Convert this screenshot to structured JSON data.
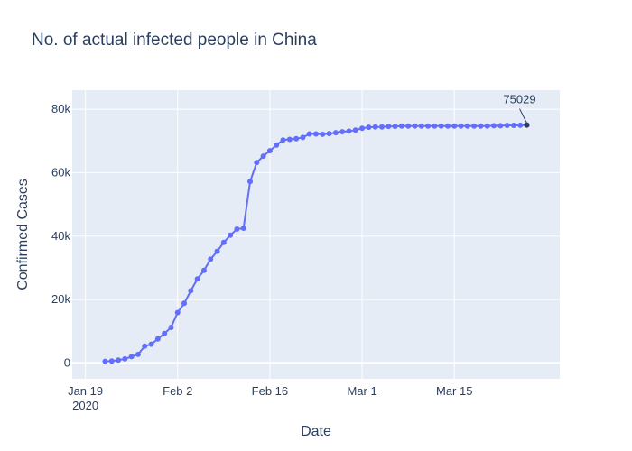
{
  "chart_data": {
    "type": "line",
    "title": "No. of actual infected people in China",
    "xlabel": "Date",
    "ylabel": "Confirmed Cases",
    "xlim": [
      "2020-01-17",
      "2020-03-31"
    ],
    "ylim": [
      -5000,
      86000
    ],
    "x_ticks": [
      {
        "date": "2020-01-19",
        "label": "Jan 19",
        "sublabel": "2020"
      },
      {
        "date": "2020-02-02",
        "label": "Feb 2"
      },
      {
        "date": "2020-02-16",
        "label": "Feb 16"
      },
      {
        "date": "2020-03-01",
        "label": "Mar 1"
      },
      {
        "date": "2020-03-15",
        "label": "Mar 15"
      }
    ],
    "y_ticks": [
      {
        "value": 0,
        "label": "0"
      },
      {
        "value": 20000,
        "label": "20k"
      },
      {
        "value": 40000,
        "label": "40k"
      },
      {
        "value": 60000,
        "label": "60k"
      },
      {
        "value": 80000,
        "label": "80k"
      }
    ],
    "grid": true,
    "series": [
      {
        "color": "#636efa",
        "x": [
          "2020-01-22",
          "2020-01-23",
          "2020-01-24",
          "2020-01-25",
          "2020-01-26",
          "2020-01-27",
          "2020-01-28",
          "2020-01-29",
          "2020-01-30",
          "2020-01-31",
          "2020-02-01",
          "2020-02-02",
          "2020-02-03",
          "2020-02-04",
          "2020-02-05",
          "2020-02-06",
          "2020-02-07",
          "2020-02-08",
          "2020-02-09",
          "2020-02-10",
          "2020-02-11",
          "2020-02-12",
          "2020-02-13",
          "2020-02-14",
          "2020-02-15",
          "2020-02-16",
          "2020-02-17",
          "2020-02-18",
          "2020-02-19",
          "2020-02-20",
          "2020-02-21",
          "2020-02-22",
          "2020-02-23",
          "2020-02-24",
          "2020-02-25",
          "2020-02-26",
          "2020-02-27",
          "2020-02-28",
          "2020-02-29",
          "2020-03-01",
          "2020-03-02",
          "2020-03-03",
          "2020-03-04",
          "2020-03-05",
          "2020-03-06",
          "2020-03-07",
          "2020-03-08",
          "2020-03-09",
          "2020-03-10",
          "2020-03-11",
          "2020-03-12",
          "2020-03-13",
          "2020-03-14",
          "2020-03-15",
          "2020-03-16",
          "2020-03-17",
          "2020-03-18",
          "2020-03-19",
          "2020-03-20",
          "2020-03-21",
          "2020-03-22",
          "2020-03-23",
          "2020-03-24",
          "2020-03-25",
          "2020-03-26"
        ],
        "values": [
          500,
          600,
          900,
          1300,
          2000,
          2700,
          5300,
          5900,
          7600,
          9300,
          11200,
          15900,
          18800,
          22800,
          26500,
          29200,
          32700,
          35200,
          38000,
          40300,
          42200,
          42500,
          57200,
          63200,
          65200,
          66900,
          68700,
          70300,
          70500,
          70700,
          71100,
          72200,
          72200,
          72100,
          72300,
          72600,
          72900,
          73100,
          73400,
          74000,
          74300,
          74400,
          74400,
          74600,
          74600,
          74700,
          74700,
          74700,
          74700,
          74700,
          74700,
          74700,
          74700,
          74700,
          74700,
          74700,
          74700,
          74700,
          74700,
          74800,
          74800,
          74900,
          74900,
          74950,
          75029
        ]
      }
    ],
    "annotations": [
      {
        "x": "2020-03-26",
        "y": 75029,
        "text": "75029"
      }
    ]
  }
}
